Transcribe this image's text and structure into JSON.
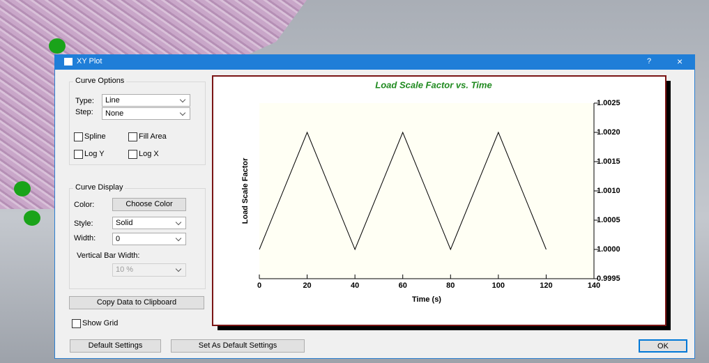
{
  "window": {
    "title": "XY Plot",
    "help": "?",
    "close": "×"
  },
  "curve_options": {
    "legend": "Curve Options",
    "type_label": "Type:",
    "type_value": "Line",
    "step_label": "Step:",
    "step_value": "None",
    "checkboxes": [
      "Spline",
      "Fill Area",
      "Log Y",
      "Log X"
    ]
  },
  "curve_display": {
    "legend": "Curve Display",
    "color_label": "Color:",
    "color_button": "Choose Color",
    "style_label": "Style:",
    "style_value": "Solid",
    "width_label": "Width:",
    "width_value": "0",
    "bar_width_label": "Vertical Bar Width:",
    "bar_width_value": "10 %"
  },
  "copy_button": "Copy Data to Clipboard",
  "show_grid": "Show Grid",
  "buttons": {
    "default": "Default Settings",
    "set_default": "Set As Default Settings",
    "ok": "OK"
  },
  "chart_data": {
    "type": "line",
    "title": "Load Scale Factor vs. Time",
    "title_color": "#1f8a1f",
    "x_label": "Time (s)",
    "y_label": "Load Scale Factor",
    "x": [
      0,
      20,
      40,
      60,
      80,
      100,
      120
    ],
    "series": [
      {
        "name": "Load Scale Factor",
        "color": "#000000",
        "values": [
          1.0,
          1.002,
          1.0,
          1.002,
          1.0,
          1.002,
          1.0
        ]
      }
    ],
    "xlim": [
      0,
      140
    ],
    "xticks": [
      0,
      20,
      40,
      60,
      80,
      100,
      120,
      140
    ],
    "ylim": [
      0.9995,
      1.0025
    ],
    "yticks": [
      {
        "value": 0.9995,
        "label": "0.9995"
      },
      {
        "value": 1.0,
        "label": "1.0000"
      },
      {
        "value": 1.0005,
        "label": "1.0005"
      },
      {
        "value": 1.001,
        "label": "1.0010"
      },
      {
        "value": 1.0015,
        "label": "1.0015"
      },
      {
        "value": 1.002,
        "label": "1.0020"
      },
      {
        "value": 1.0025,
        "label": "1.0025"
      }
    ],
    "y_axis_side": "right",
    "grid": false,
    "plot_background": "#fffff4"
  }
}
